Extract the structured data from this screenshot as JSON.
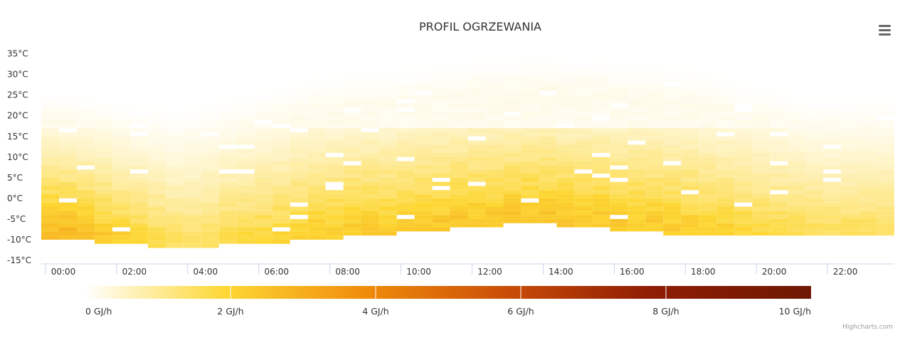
{
  "chart_data": {
    "type": "heatmap",
    "title": "PROFIL OGRZEWANIA",
    "xlabel": "",
    "ylabel": "",
    "x_ticks": [
      "00:00",
      "02:00",
      "04:00",
      "06:00",
      "08:00",
      "10:00",
      "12:00",
      "14:00",
      "16:00",
      "18:00",
      "20:00",
      "22:00"
    ],
    "y_ticks": [
      "35°C",
      "30°C",
      "25°C",
      "20°C",
      "15°C",
      "10°C",
      "5°C",
      "0°C",
      "-5°C",
      "-10°C",
      "-15°C"
    ],
    "x_range_hours": [
      0,
      24
    ],
    "y_range_celsius": [
      -15,
      37
    ],
    "cell_hours": 0.5,
    "cell_celsius": 1,
    "legend_position": "bottom",
    "colorbar": {
      "min": 0,
      "max": 10.3,
      "unit": "GJ/h",
      "labels": [
        "0 GJ/h",
        "2 GJ/h",
        "4 GJ/h",
        "6 GJ/h",
        "8 GJ/h",
        "10 GJ/h"
      ],
      "stops": [
        "#ffffff",
        "#fdd733",
        "#f08b0b",
        "#c94d08",
        "#8f1d04",
        "#6e1802"
      ]
    },
    "profile_description_points": [
      {
        "hour": 0.5,
        "min_temp": -10,
        "max_temp": 26,
        "peak_value_gj_h": 3.0
      },
      {
        "hour": 4,
        "min_temp": -12,
        "max_temp": 22,
        "peak_value_gj_h": 1.6
      },
      {
        "hour": 8,
        "min_temp": -10,
        "max_temp": 30,
        "peak_value_gj_h": 2.4
      },
      {
        "hour": 14,
        "min_temp": -6,
        "max_temp": 35,
        "peak_value_gj_h": 2.6
      },
      {
        "hour": 18,
        "min_temp": -9,
        "max_temp": 32,
        "peak_value_gj_h": 2.4
      },
      {
        "hour": 22,
        "min_temp": -9,
        "max_temp": 25,
        "peak_value_gj_h": 1.7
      }
    ]
  },
  "credits": "Highcharts.com",
  "menu_icon": "hamburger-menu-icon"
}
